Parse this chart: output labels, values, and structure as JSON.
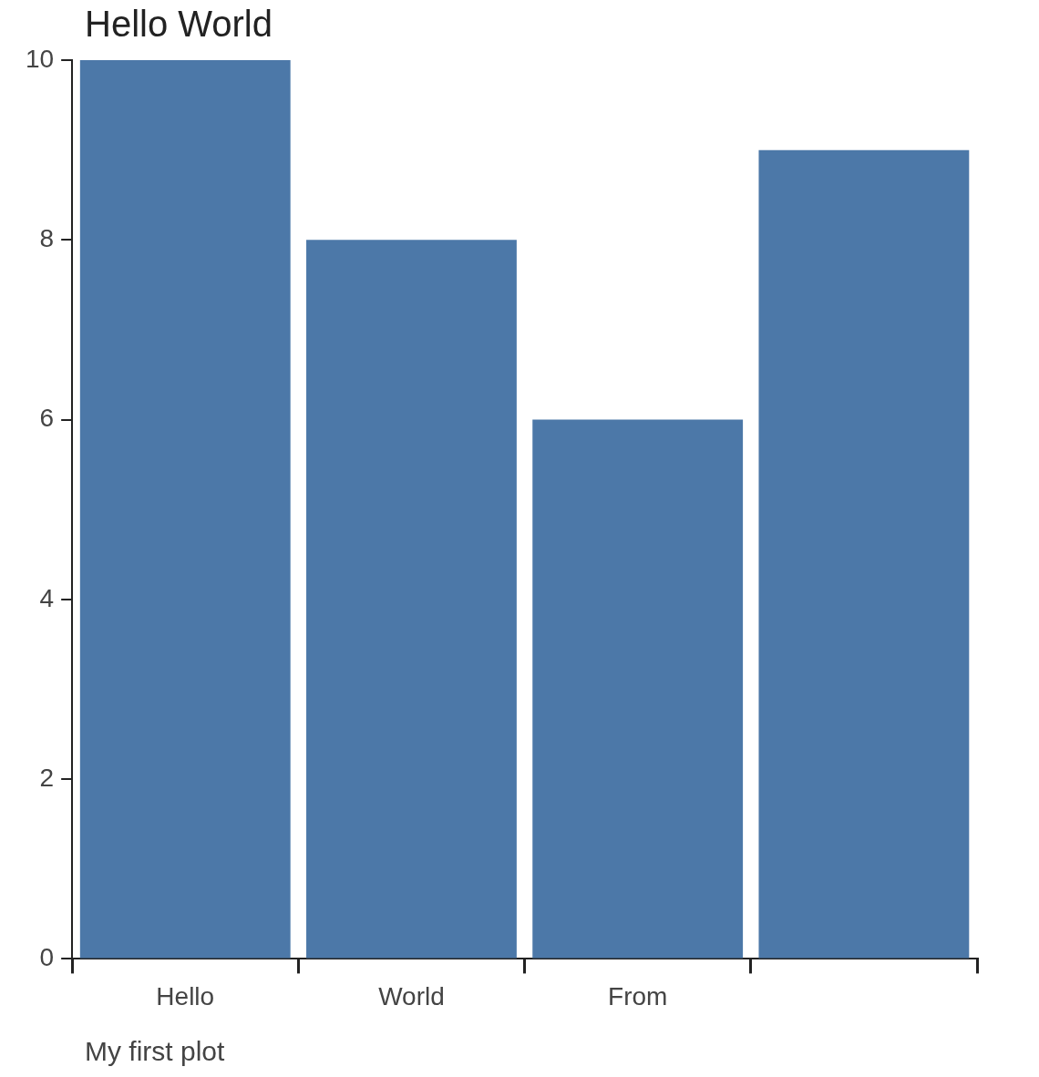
{
  "chart_data": {
    "type": "bar",
    "title": "Hello World",
    "categories": [
      "Hello",
      "World",
      "From",
      null
    ],
    "values": [
      10,
      8,
      6,
      9
    ],
    "color": "#4c78a8",
    "ylim": [
      0,
      10
    ],
    "yticks": [
      0,
      2,
      4,
      6,
      8,
      10
    ],
    "annotations": [
      "My first plot"
    ]
  }
}
